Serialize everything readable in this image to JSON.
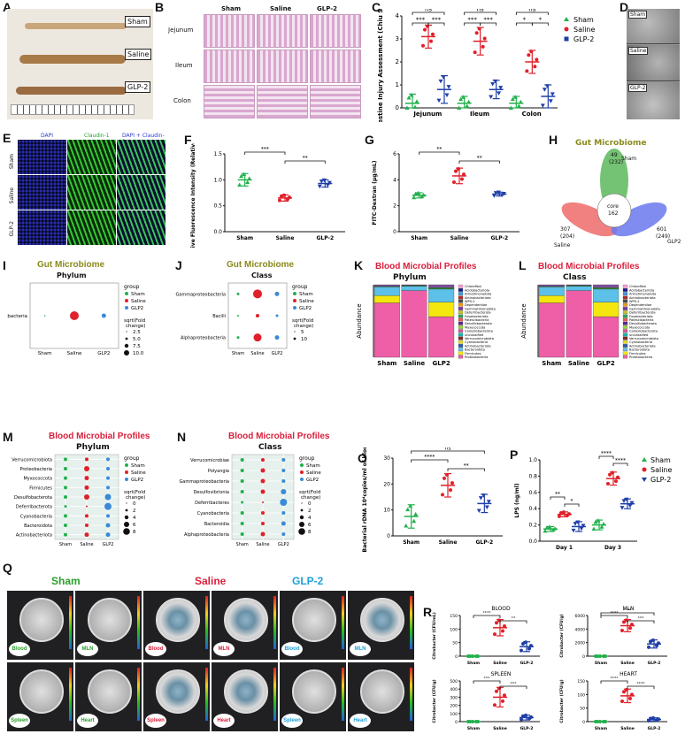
{
  "panel_labels": [
    "A",
    "B",
    "C",
    "D",
    "E",
    "F",
    "G",
    "H",
    "I",
    "J",
    "K",
    "L",
    "M",
    "N",
    "O",
    "P",
    "Q",
    "R"
  ],
  "panelA": {
    "tags": [
      "Sham",
      "Saline",
      "GLP-2"
    ]
  },
  "panelB": {
    "cols": [
      "Sham",
      "Saline",
      "GLP-2"
    ],
    "rows": [
      "Jejunum",
      "Ileum",
      "Colon"
    ]
  },
  "panelD": {
    "tags": [
      "Sham",
      "Saline",
      "GLP-2"
    ]
  },
  "panelE": {
    "cols": [
      "DAPI",
      "Claudin-1",
      "DAPI + Claudin-1"
    ],
    "rows": [
      "Sham",
      "Saline",
      "GLP-2"
    ]
  },
  "panelH": {
    "title": "Gut Microbiome",
    "core_label": "core",
    "core_value": "162",
    "sham_top": "49",
    "sham_sub": "(232)",
    "sham_name": "Sham",
    "saline_top": "307",
    "saline_sub": "(204)",
    "saline_name": "Saline",
    "glp_top": "601",
    "glp_sub": "(249)",
    "glp_name": "GLP2"
  },
  "dotlegend": {
    "group": "group",
    "sham": "Sham",
    "saline": "Saline",
    "glp2": "GLP2",
    "size_title": "sqrt(Fold change)"
  },
  "panelI": {
    "title": "Gut Microbiome",
    "subtitle": "Phylum",
    "ylabel": "Proteobacteria",
    "xlabels": [
      "Sham",
      "Saline",
      "GLP2"
    ],
    "sizes": [
      "2.5",
      "5.0",
      "7.5",
      "10.0"
    ]
  },
  "panelJ": {
    "title": "Gut Microbiome",
    "subtitle": "Class",
    "ylabels": [
      "Gammaproteobacteria",
      "Bacilli",
      "Alphaproteobacteria"
    ],
    "xlabels": [
      "Sham",
      "Saline",
      "GLP2"
    ],
    "sizes": [
      "5",
      "10"
    ]
  },
  "panelK": {
    "title": "Blood Microbial Profiles",
    "subtitle": "Phylum",
    "ylabel": "Abundance",
    "xlabels": [
      "Sham",
      "Saline",
      "GLP2"
    ],
    "legend": [
      "Chloroflexi",
      "Acidobacteriota",
      "Armatimonadota",
      "Actinobacteriota",
      "WPS-2",
      "Dependentiae",
      "Gemmatimonadota",
      "Deferribacterota",
      "Fusobacteriota",
      "Patescibacteria",
      "Desulfobacterota",
      "Myxococcota",
      "Campilobacterota",
      "unclassified",
      "Verrucomicrobiota",
      "Cyanobacteria",
      "Actinobacteriota",
      "Bacteroidota",
      "Firmicutes",
      "Proteobacteria"
    ]
  },
  "panelL": {
    "title": "Blood Microbial Profiles",
    "subtitle": "Class",
    "ylabel": "Abundance",
    "xlabels": [
      "Sham",
      "Saline",
      "GLP2"
    ],
    "legend": [
      "Chloroflexi",
      "Acidobacteriota",
      "Armatimonadota",
      "Actinobacteriota",
      "WPS-2",
      "Dependentiae",
      "Gemmatimonadota",
      "Deferribacterota",
      "Fusobacteriota",
      "Patescibacteria",
      "Desulfobacterota",
      "Myxococcota",
      "Campilobacterota",
      "unclassified",
      "Verrucomicrobiota",
      "Cyanobacteria",
      "Actinobacteriota",
      "Bacteroidota",
      "Firmicutes",
      "Proteobacteria"
    ]
  },
  "panelM": {
    "title": "Blood Microbial Profiles",
    "subtitle": "Phylum",
    "ylabels": [
      "Verrucomicrobiota",
      "Proteobacteria",
      "Myxococcota",
      "Firmicutes",
      "Desulfobacterota",
      "Deferribacterota",
      "Cyanobacteria",
      "Bacteroidota",
      "Actinobacteriota"
    ],
    "xlabels": [
      "Sham",
      "Saline",
      "GLP2"
    ],
    "sizes": [
      "0",
      "2",
      "4",
      "6",
      "8"
    ]
  },
  "panelN": {
    "title": "Blood Microbial Profiles",
    "subtitle": "Class",
    "ylabels": [
      "Verrucomicrobiae",
      "Polyangia",
      "Gammaproteobacteria",
      "Desulfovibrionia",
      "Deferribacteres",
      "Cyanobacteria",
      "Bacteroidia",
      "Alphaproteobacteria"
    ],
    "xlabels": [
      "Sham",
      "Saline",
      "GLP2"
    ],
    "sizes": [
      "0",
      "2",
      "4",
      "6",
      "8"
    ]
  },
  "panelQ": {
    "groups": [
      "Sham",
      "Saline",
      "GLP-2"
    ],
    "tags": [
      "Blood",
      "MLN",
      "Spleen",
      "Heart"
    ]
  },
  "colors": {
    "sham": "#22b14c",
    "saline": "#e0202a",
    "glp2": "#1f3fa8",
    "olive": "#8a8a1e",
    "crimson": "#d8203c"
  },
  "chart_data": [
    {
      "id": "C",
      "type": "scatter",
      "ylabel": "Intestine Injury Assessment (Chiu Score)",
      "categories": [
        "Jejunum",
        "Ileum",
        "Colon"
      ],
      "ylim": [
        0,
        4
      ],
      "yticks": [
        "0",
        "1",
        "2",
        "3",
        "4"
      ],
      "legend": [
        "Sham",
        "Saline",
        "GLP-2"
      ],
      "means": [
        [
          0.2,
          3.1,
          0.8
        ],
        [
          0.2,
          2.9,
          0.8
        ],
        [
          0.2,
          2.0,
          0.5
        ]
      ],
      "sds": [
        [
          0.4,
          0.5,
          0.6
        ],
        [
          0.3,
          0.6,
          0.4
        ],
        [
          0.3,
          0.5,
          0.5
        ]
      ],
      "sig_top": [
        "ns",
        "ns",
        "ns"
      ],
      "sig_pairs": [
        [
          "***",
          "***"
        ],
        [
          "***",
          "***"
        ],
        [
          "*",
          "*"
        ]
      ]
    },
    {
      "id": "F",
      "type": "scatter",
      "ylabel": "Claudin-1 Relative Fluorescence Intensity (Relative to Sham group)",
      "categories": [
        "Sham",
        "Saline",
        "GLP-2"
      ],
      "ylim": [
        0,
        1.5
      ],
      "yticks": [
        "0.0",
        "0.5",
        "1.0",
        "1.5"
      ],
      "means": [
        1.0,
        0.65,
        0.93
      ],
      "sds": [
        0.12,
        0.06,
        0.07
      ],
      "sig": [
        "***",
        "**"
      ]
    },
    {
      "id": "G",
      "type": "scatter",
      "ylabel": "FITC-Dextran (μg/mL)",
      "categories": [
        "Sham",
        "Saline",
        "GLP-2"
      ],
      "ylim": [
        0,
        6
      ],
      "yticks": [
        "0",
        "2",
        "4",
        "6"
      ],
      "means": [
        2.8,
        4.3,
        2.9
      ],
      "sds": [
        0.2,
        0.6,
        0.15
      ],
      "sig": [
        "**",
        "**"
      ]
    },
    {
      "id": "O",
      "type": "scatter",
      "ylabel": "Bacterial rDNA 10⁴copies/ml of blood",
      "categories": [
        "Sham",
        "Saline",
        "GLP-2"
      ],
      "ylim": [
        0,
        30
      ],
      "yticks": [
        "0",
        "10",
        "20",
        "30"
      ],
      "means": [
        7.5,
        19.5,
        12.5
      ],
      "sds": [
        4.5,
        4.5,
        3.5
      ],
      "sig_top": "ns",
      "sig": [
        "****",
        "**"
      ]
    },
    {
      "id": "P",
      "type": "scatter",
      "ylabel": "LPS (ng/ml)",
      "categories": [
        "Day 1",
        "Day 3"
      ],
      "ylim": [
        0,
        1.0
      ],
      "yticks": [
        "0.0",
        "0.2",
        "0.4",
        "0.6",
        "0.8",
        "1.0"
      ],
      "legend": [
        "Sham",
        "Saline",
        "GLP-2"
      ],
      "means": [
        [
          0.15,
          0.33,
          0.18
        ],
        [
          0.2,
          0.77,
          0.46
        ]
      ],
      "sds": [
        [
          0.03,
          0.03,
          0.06
        ],
        [
          0.06,
          0.08,
          0.06
        ]
      ],
      "sig_pairs": [
        [
          "**",
          "*"
        ],
        [
          "****",
          "****"
        ]
      ]
    },
    {
      "id": "R-blood",
      "type": "scatter",
      "title": "BLOOD",
      "ylabel": "Citrobacter (CFU/mL)",
      "categories": [
        "Sham",
        "Saline",
        "GLP-2"
      ],
      "ylim": [
        0,
        150
      ],
      "yticks": [
        "0",
        "50",
        "100",
        "150"
      ],
      "means": [
        0,
        105,
        35
      ],
      "sds": [
        0,
        30,
        18
      ],
      "sig": [
        "****",
        "**"
      ]
    },
    {
      "id": "R-mln",
      "type": "scatter",
      "title": "MLN",
      "ylabel": "Citrobacter (CFU/g)",
      "categories": [
        "Sham",
        "Saline",
        "GLP-2"
      ],
      "ylim": [
        0,
        6000
      ],
      "yticks": [
        "0",
        "2000",
        "4000",
        "6000"
      ],
      "means": [
        0,
        4500,
        1800
      ],
      "sds": [
        0,
        900,
        600
      ],
      "sig_top": "****",
      "sig": [
        "****",
        "***"
      ]
    },
    {
      "id": "R-spleen",
      "type": "scatter",
      "title": "SPLEEN",
      "ylabel": "Citrobacter (CFU/g)",
      "categories": [
        "Sham",
        "Saline",
        "GLP-2"
      ],
      "ylim": [
        0,
        500
      ],
      "yticks": [
        "0",
        "100",
        "200",
        "300",
        "400",
        "500"
      ],
      "means": [
        0,
        300,
        50
      ],
      "sds": [
        0,
        120,
        30
      ],
      "sig": [
        "***",
        "***"
      ]
    },
    {
      "id": "R-heart",
      "type": "scatter",
      "title": "HEART",
      "ylabel": "Citrobacter (CFU/g)",
      "categories": [
        "Sham",
        "Saline",
        "GLP-2"
      ],
      "ylim": [
        0,
        150
      ],
      "yticks": [
        "0",
        "50",
        "100",
        "150"
      ],
      "means": [
        0,
        95,
        8
      ],
      "sds": [
        0,
        25,
        6
      ],
      "sig": [
        "****",
        "****"
      ]
    },
    {
      "id": "K",
      "type": "bar",
      "stacked": true,
      "categories": [
        "Sham",
        "Saline",
        "GLP2"
      ],
      "ylim": [
        0,
        1
      ],
      "series": [
        {
          "color": "#ee5fa8",
          "values": [
            0.75,
            0.92,
            0.56
          ]
        },
        {
          "color": "#f4e60f",
          "values": [
            0.1,
            0.0,
            0.2
          ]
        },
        {
          "color": "#5cc0e8",
          "values": [
            0.12,
            0.06,
            0.18
          ]
        },
        {
          "color": "#2a8a2a",
          "values": [
            0.01,
            0.01,
            0.02
          ]
        },
        {
          "color": "#7f4fa0",
          "values": [
            0.02,
            0.01,
            0.04
          ]
        }
      ]
    },
    {
      "id": "L",
      "type": "bar",
      "stacked": true,
      "categories": [
        "Sham",
        "Saline",
        "GLP2"
      ],
      "ylim": [
        0,
        1
      ],
      "series": [
        {
          "color": "#ee5fa8",
          "values": [
            0.75,
            0.92,
            0.56
          ]
        },
        {
          "color": "#f4e60f",
          "values": [
            0.1,
            0.0,
            0.2
          ]
        },
        {
          "color": "#5cc0e8",
          "values": [
            0.12,
            0.06,
            0.18
          ]
        },
        {
          "color": "#2a8a2a",
          "values": [
            0.01,
            0.01,
            0.02
          ]
        },
        {
          "color": "#7f4fa0",
          "values": [
            0.02,
            0.01,
            0.04
          ]
        }
      ]
    }
  ]
}
